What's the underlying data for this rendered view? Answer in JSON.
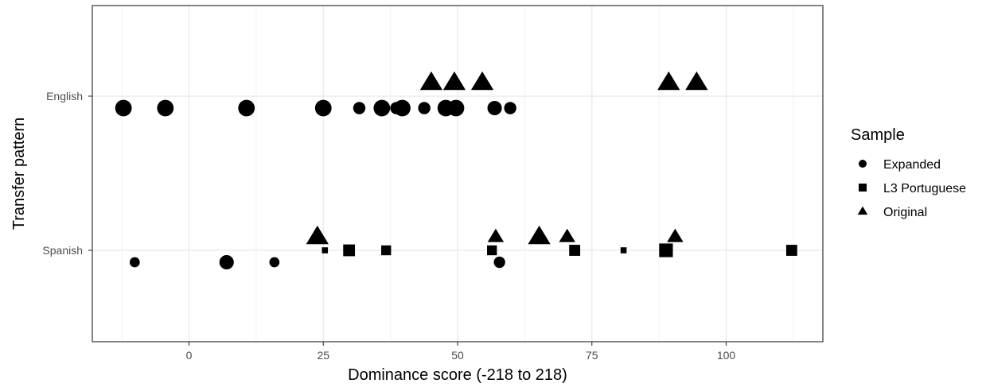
{
  "chart_data": {
    "type": "scatter",
    "xlabel": "Dominance score (-218 to 218)",
    "ylabel": "Transfer pattern",
    "xlim": [
      -18,
      118
    ],
    "x_ticks": [
      0,
      25,
      50,
      75,
      100
    ],
    "categories": [
      "English",
      "Spanish"
    ],
    "grid": true,
    "legend": {
      "title": "Sample",
      "placement": "right"
    },
    "series": [
      {
        "name": "Expanded",
        "shape": "circle",
        "points": [
          {
            "x": -12.2,
            "category": "English",
            "size": 3
          },
          {
            "x": -4.4,
            "category": "English",
            "size": 3
          },
          {
            "x": 10.7,
            "category": "English",
            "size": 3
          },
          {
            "x": 25.0,
            "category": "English",
            "size": 3
          },
          {
            "x": 31.7,
            "category": "English",
            "size": 2
          },
          {
            "x": 35.9,
            "category": "English",
            "size": 3
          },
          {
            "x": 38.6,
            "category": "English",
            "size": 2
          },
          {
            "x": 39.7,
            "category": "English",
            "size": 3
          },
          {
            "x": 43.8,
            "category": "English",
            "size": 2
          },
          {
            "x": 47.8,
            "category": "English",
            "size": 3
          },
          {
            "x": 49.7,
            "category": "English",
            "size": 3
          },
          {
            "x": 56.9,
            "category": "English",
            "size": 2.5
          },
          {
            "x": 59.8,
            "category": "English",
            "size": 2
          },
          {
            "x": -10.1,
            "category": "Spanish",
            "size": 1.5
          },
          {
            "x": 7.0,
            "category": "Spanish",
            "size": 2.5
          },
          {
            "x": 15.9,
            "category": "Spanish",
            "size": 1.5
          },
          {
            "x": 57.8,
            "category": "Spanish",
            "size": 1.8
          }
        ]
      },
      {
        "name": "L3 Portuguese",
        "shape": "square",
        "points": [
          {
            "x": 25.3,
            "category": "Spanish",
            "size": 0.5
          },
          {
            "x": 29.8,
            "category": "Spanish",
            "size": 2
          },
          {
            "x": 36.7,
            "category": "Spanish",
            "size": 1.5
          },
          {
            "x": 56.4,
            "category": "Spanish",
            "size": 1.5
          },
          {
            "x": 71.8,
            "category": "Spanish",
            "size": 1.8
          },
          {
            "x": 80.9,
            "category": "Spanish",
            "size": 0.5
          },
          {
            "x": 88.8,
            "category": "Spanish",
            "size": 2.5
          },
          {
            "x": 112.2,
            "category": "Spanish",
            "size": 1.8
          }
        ]
      },
      {
        "name": "Original",
        "shape": "triangle",
        "points": [
          {
            "x": 45.1,
            "category": "English",
            "size": 3
          },
          {
            "x": 49.4,
            "category": "English",
            "size": 3
          },
          {
            "x": 54.6,
            "category": "English",
            "size": 3
          },
          {
            "x": 89.3,
            "category": "English",
            "size": 3
          },
          {
            "x": 94.5,
            "category": "English",
            "size": 3
          },
          {
            "x": 23.9,
            "category": "Spanish",
            "size": 3
          },
          {
            "x": 57.1,
            "category": "Spanish",
            "size": 2
          },
          {
            "x": 65.2,
            "category": "Spanish",
            "size": 3
          },
          {
            "x": 70.4,
            "category": "Spanish",
            "size": 2
          },
          {
            "x": 90.5,
            "category": "Spanish",
            "size": 2
          }
        ]
      }
    ]
  }
}
